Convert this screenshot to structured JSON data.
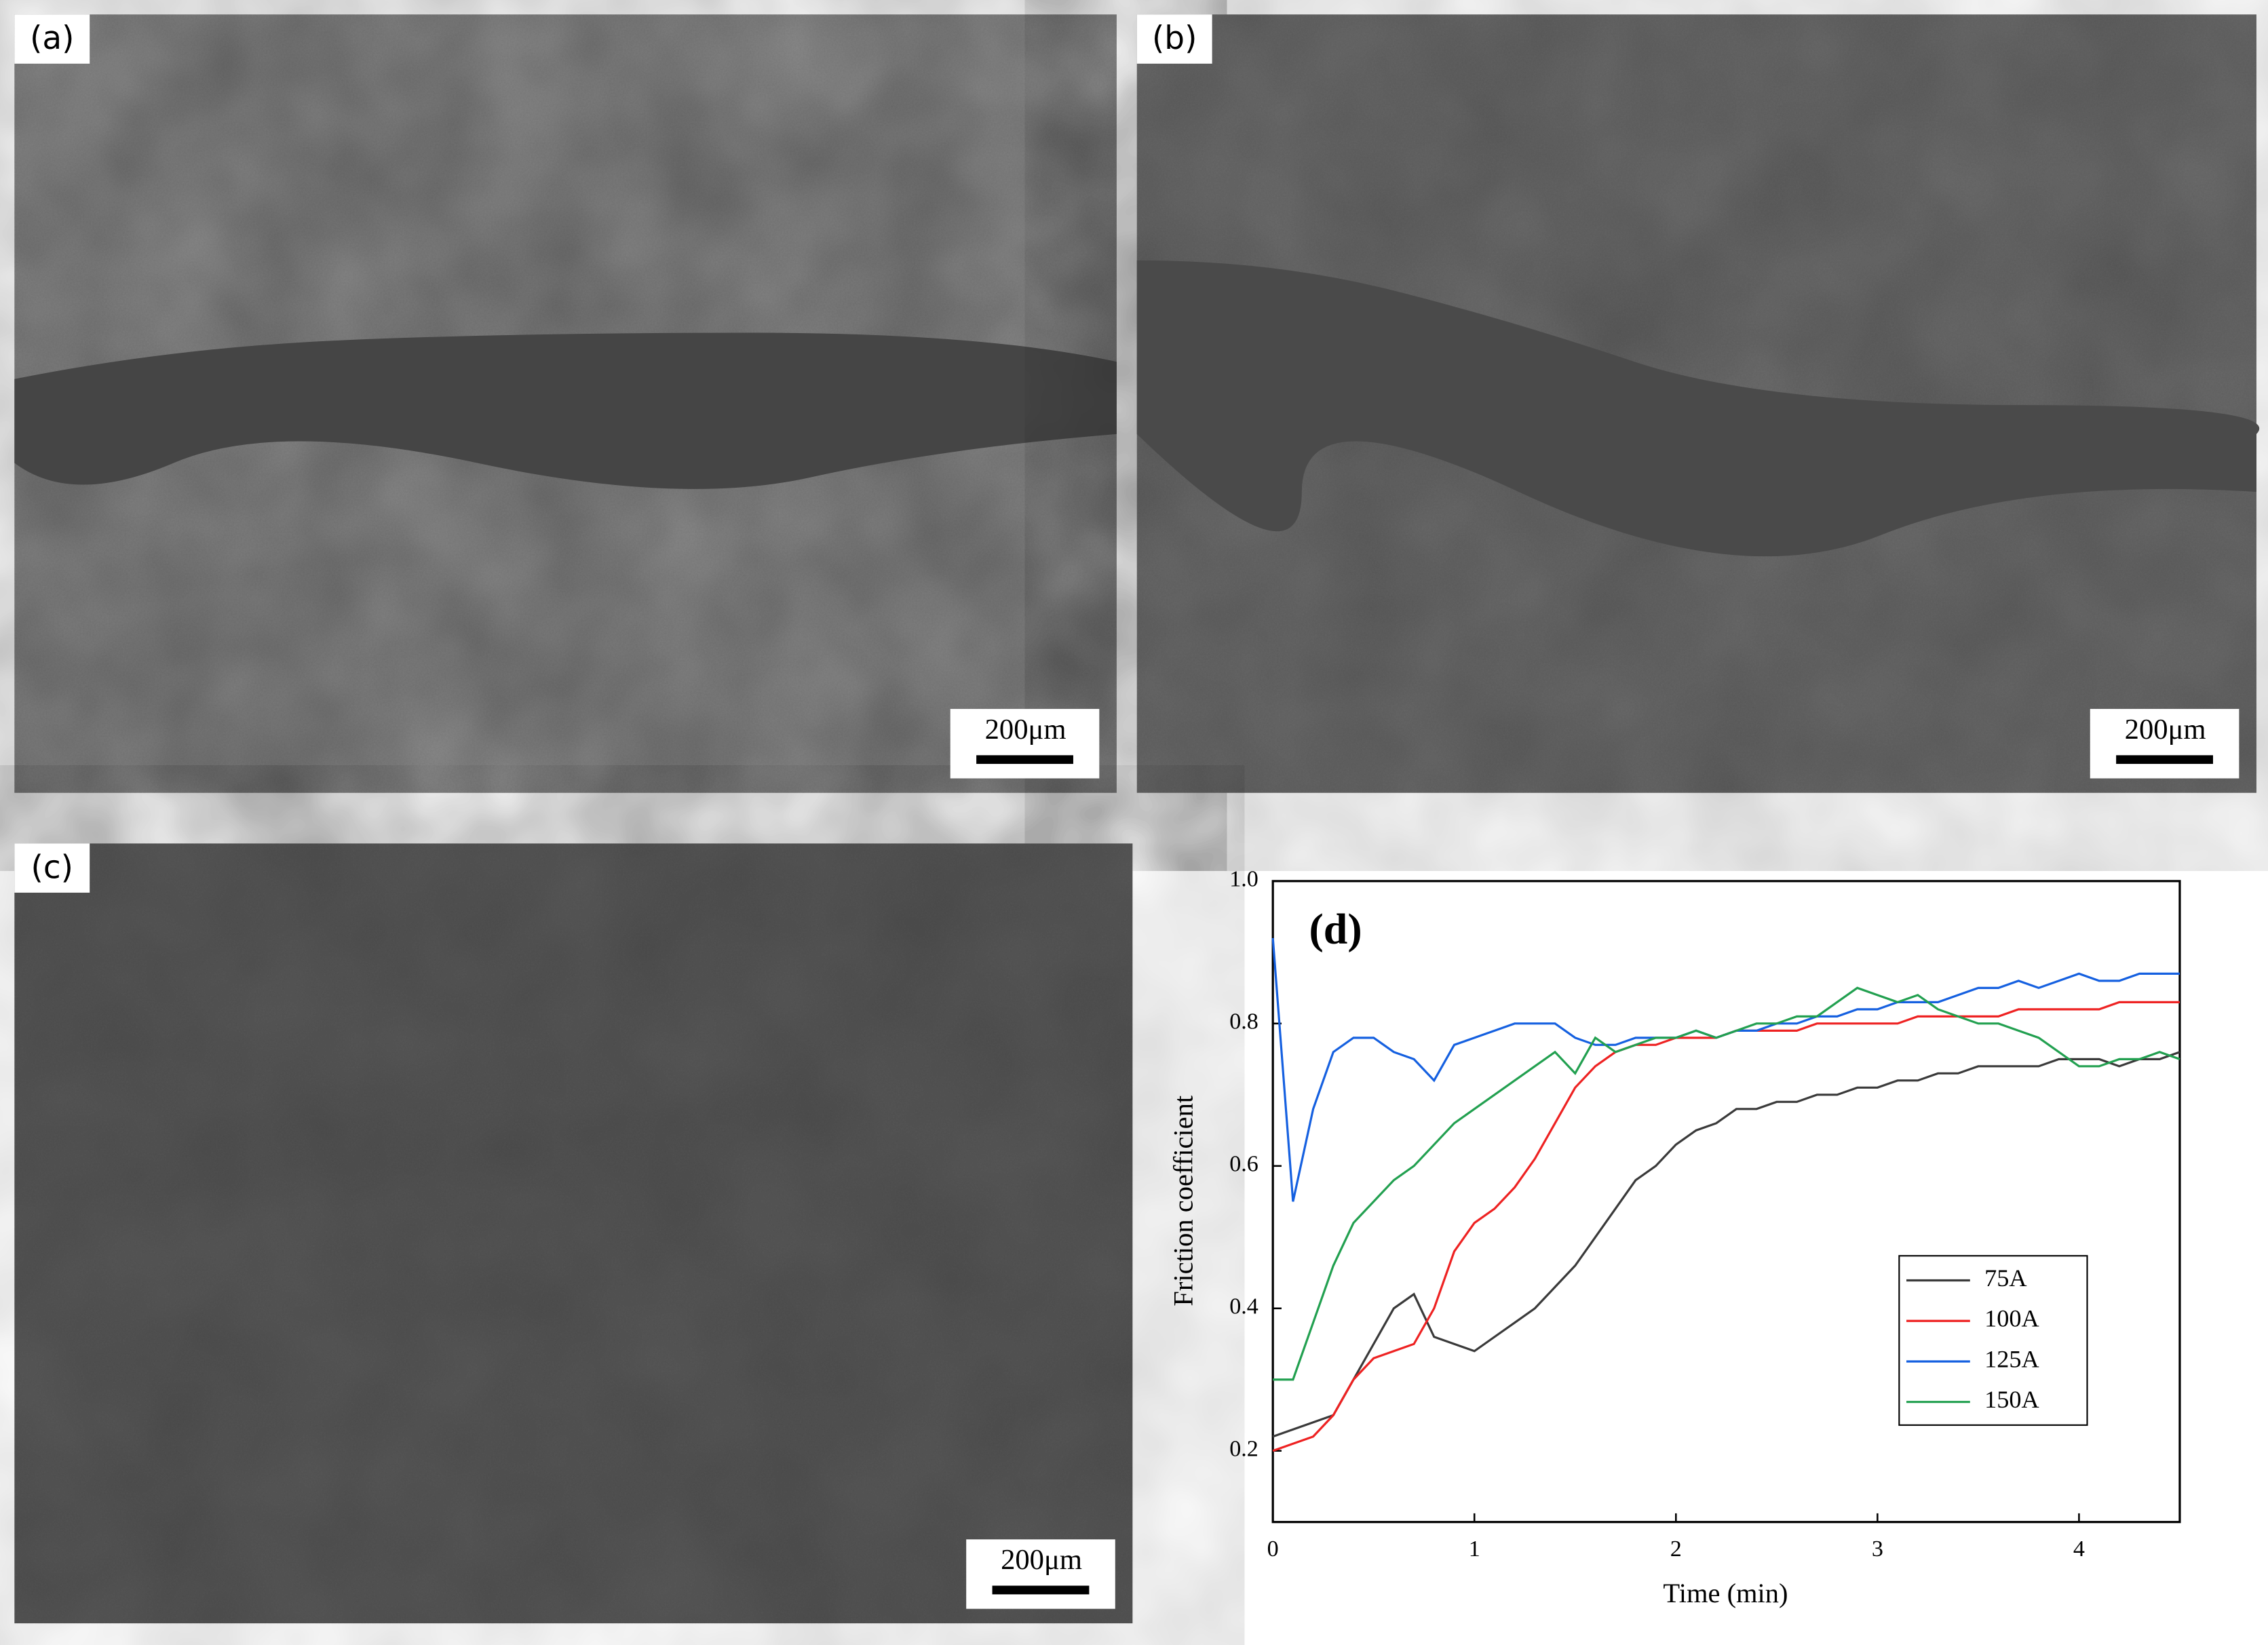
{
  "panels": [
    {
      "label": "(a)",
      "scale_bar": "200μm"
    },
    {
      "label": "(b)",
      "scale_bar": "200μm"
    },
    {
      "label": "(c)",
      "scale_bar": "200μm"
    }
  ],
  "chart_data": {
    "type": "line",
    "annotation": "(d)",
    "x_label": "Time (min)",
    "y_label": "Friction coefficient",
    "xlim": [
      0,
      4.5
    ],
    "xticks": [
      0,
      1,
      2,
      3,
      4
    ],
    "ylim": [
      0.1,
      1.0
    ],
    "yticks": [
      0.2,
      0.4,
      0.6,
      0.8,
      {
        "value": 1,
        "label": "1.0"
      }
    ],
    "legend": "lower right",
    "x": [
      0,
      0.1,
      0.2,
      0.3,
      0.4,
      0.5,
      0.6,
      0.7,
      0.8,
      0.9,
      1.0,
      1.1,
      1.2,
      1.3,
      1.4,
      1.5,
      1.6,
      1.7,
      1.8,
      1.9,
      2.0,
      2.1,
      2.2,
      2.3,
      2.4,
      2.5,
      2.6,
      2.7,
      2.8,
      2.9,
      3.0,
      3.1,
      3.2,
      3.3,
      3.4,
      3.5,
      3.6,
      3.7,
      3.8,
      3.9,
      4.0,
      4.1,
      4.2,
      4.3,
      4.4,
      4.5
    ],
    "series": [
      {
        "name": "75A",
        "color": "#3a3a3a",
        "values": [
          0.22,
          0.23,
          0.24,
          0.25,
          0.3,
          0.35,
          0.4,
          0.42,
          0.36,
          0.35,
          0.34,
          0.36,
          0.38,
          0.4,
          0.43,
          0.46,
          0.5,
          0.54,
          0.58,
          0.6,
          0.63,
          0.65,
          0.66,
          0.68,
          0.68,
          0.69,
          0.69,
          0.7,
          0.7,
          0.71,
          0.71,
          0.72,
          0.72,
          0.73,
          0.73,
          0.74,
          0.74,
          0.74,
          0.74,
          0.75,
          0.75,
          0.75,
          0.74,
          0.75,
          0.75,
          0.76
        ]
      },
      {
        "name": "100A",
        "color": "#ee2222",
        "values": [
          0.2,
          0.21,
          0.22,
          0.25,
          0.3,
          0.33,
          0.34,
          0.35,
          0.4,
          0.48,
          0.52,
          0.54,
          0.57,
          0.61,
          0.66,
          0.71,
          0.74,
          0.76,
          0.77,
          0.77,
          0.78,
          0.78,
          0.78,
          0.79,
          0.79,
          0.79,
          0.79,
          0.8,
          0.8,
          0.8,
          0.8,
          0.8,
          0.81,
          0.81,
          0.81,
          0.81,
          0.81,
          0.82,
          0.82,
          0.82,
          0.82,
          0.82,
          0.83,
          0.83,
          0.83,
          0.83
        ]
      },
      {
        "name": "125A",
        "color": "#1560e0",
        "values": [
          0.92,
          0.55,
          0.68,
          0.76,
          0.78,
          0.78,
          0.76,
          0.75,
          0.72,
          0.77,
          0.78,
          0.79,
          0.8,
          0.8,
          0.8,
          0.78,
          0.77,
          0.77,
          0.78,
          0.78,
          0.78,
          0.79,
          0.78,
          0.79,
          0.79,
          0.8,
          0.8,
          0.81,
          0.81,
          0.82,
          0.82,
          0.83,
          0.83,
          0.83,
          0.84,
          0.85,
          0.85,
          0.86,
          0.85,
          0.86,
          0.87,
          0.86,
          0.86,
          0.87,
          0.87,
          0.87
        ]
      },
      {
        "name": "150A",
        "color": "#22a050",
        "values": [
          0.3,
          0.3,
          0.38,
          0.46,
          0.52,
          0.55,
          0.58,
          0.6,
          0.63,
          0.66,
          0.68,
          0.7,
          0.72,
          0.74,
          0.76,
          0.73,
          0.78,
          0.76,
          0.77,
          0.78,
          0.78,
          0.79,
          0.78,
          0.79,
          0.8,
          0.8,
          0.81,
          0.81,
          0.83,
          0.85,
          0.84,
          0.83,
          0.84,
          0.82,
          0.81,
          0.8,
          0.8,
          0.79,
          0.78,
          0.76,
          0.74,
          0.74,
          0.75,
          0.75,
          0.76,
          0.75
        ]
      }
    ]
  }
}
